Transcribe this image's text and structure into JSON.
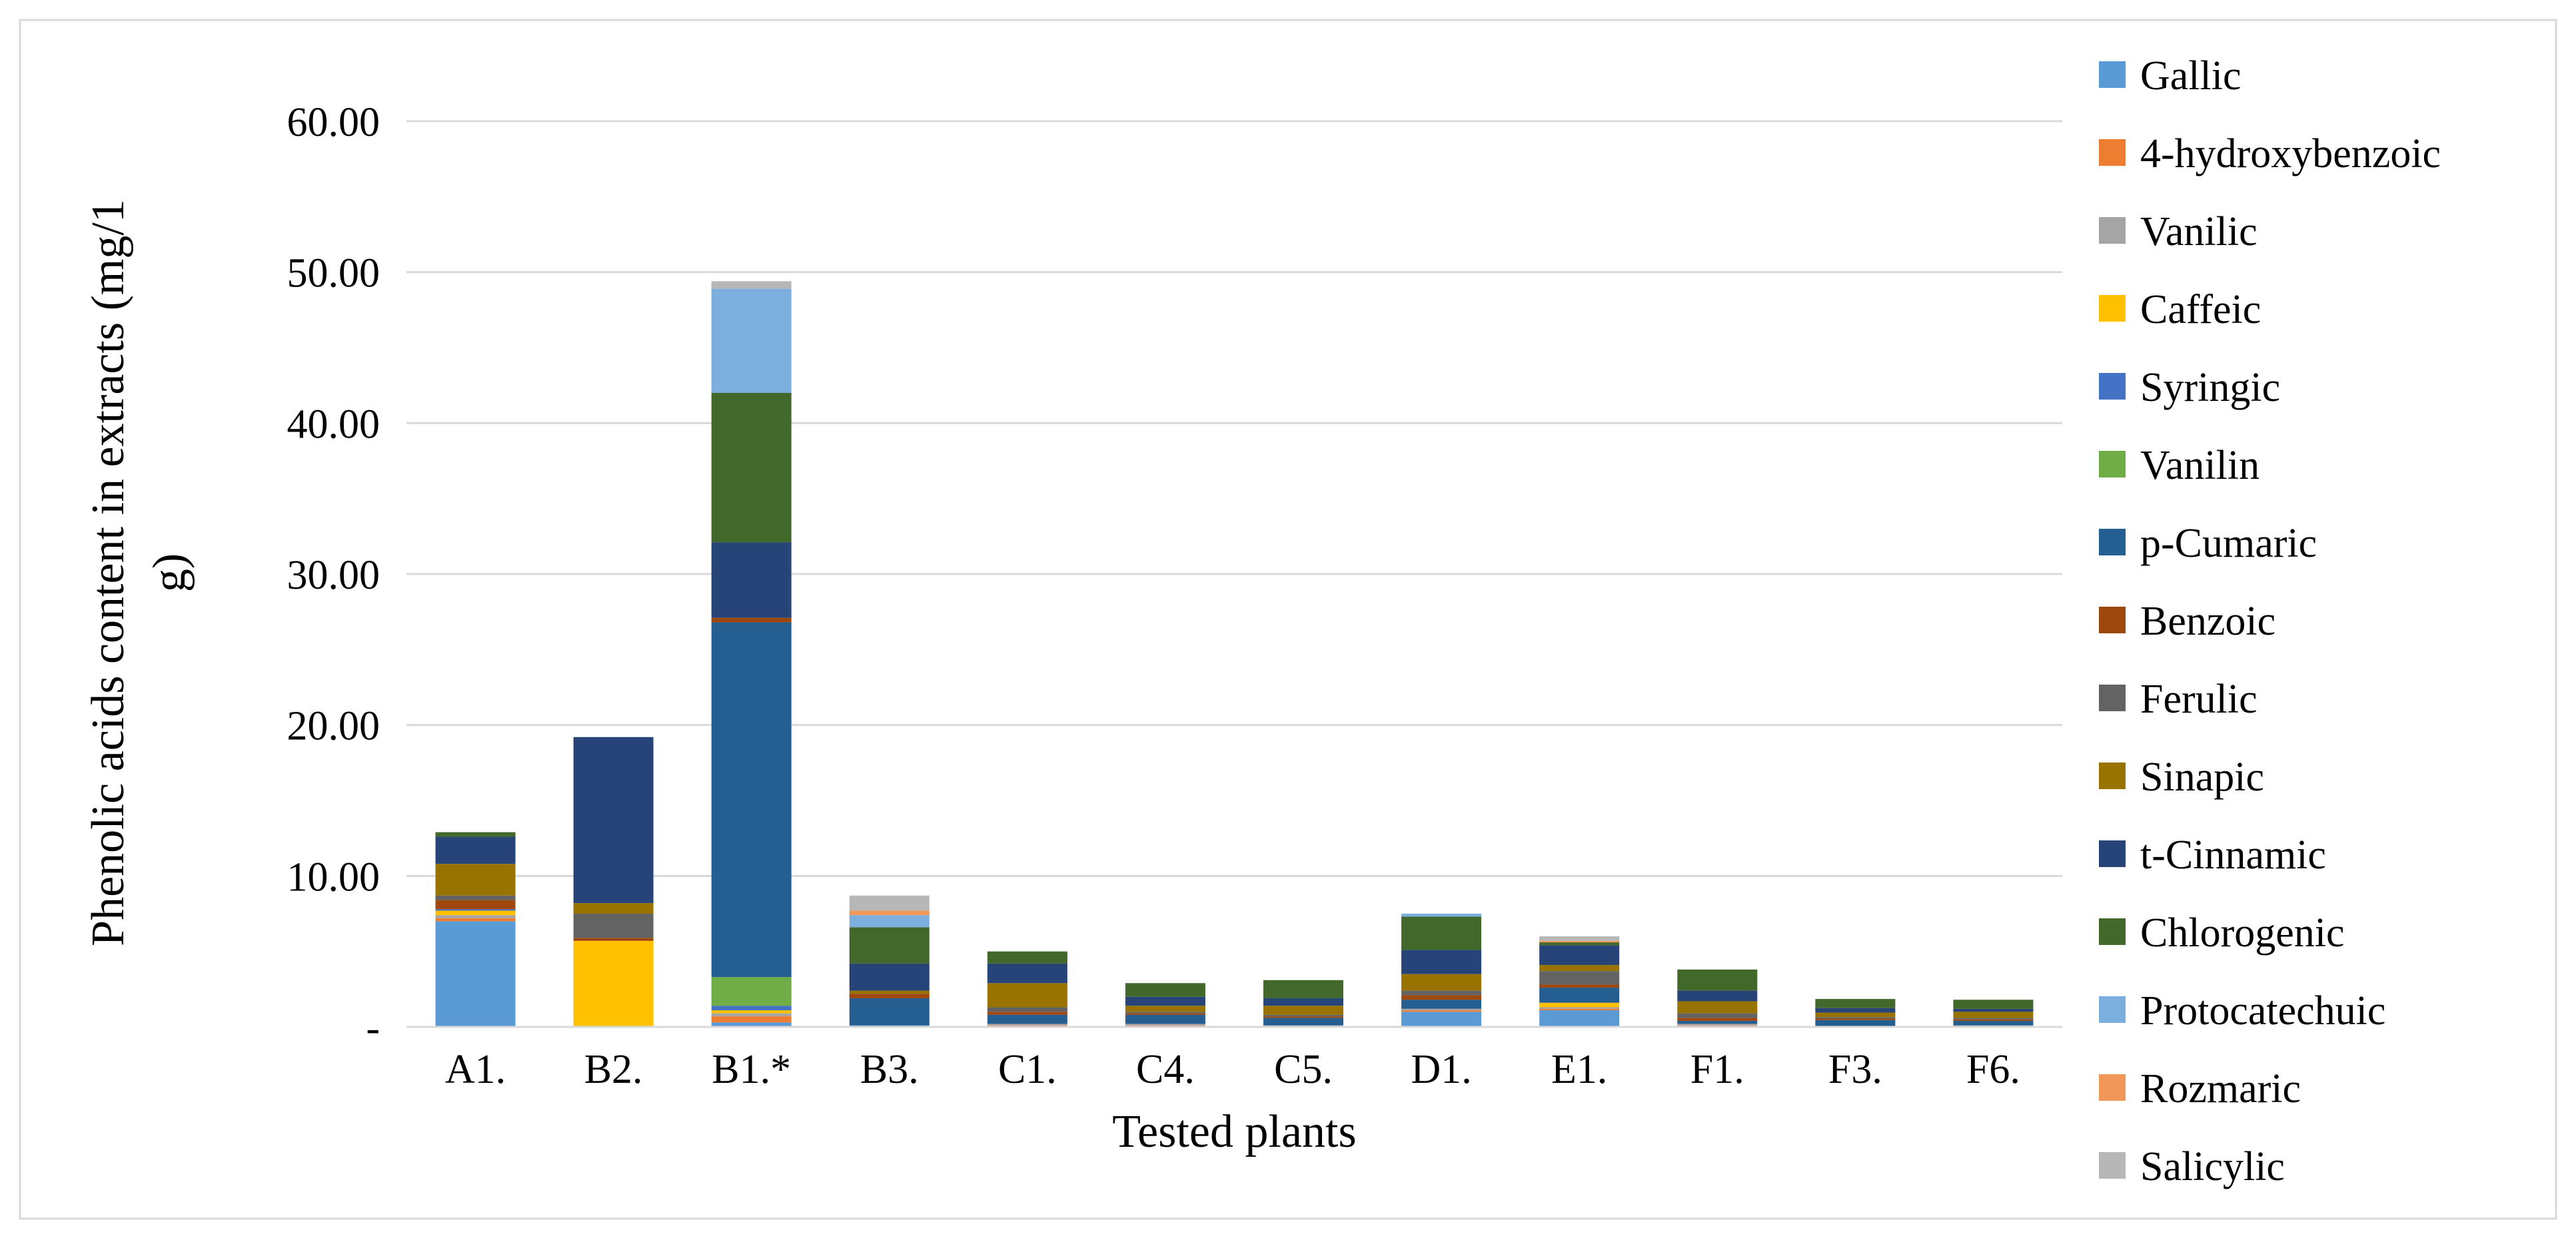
{
  "chart_data": {
    "type": "bar",
    "stacked": true,
    "xlabel": "Tested plants",
    "ylabel": "Phenolic acids content in extracts (mg/1 g)",
    "ylabel_lines": [
      "Phenolic acids content in extracts (mg/1",
      "g)"
    ],
    "ylim": [
      0,
      60
    ],
    "yticks": [
      0,
      10,
      20,
      30,
      40,
      50,
      60
    ],
    "ytick_labels": [
      "-",
      "10.00",
      "20.00",
      "30.00",
      "40.00",
      "50.00",
      "60.00"
    ],
    "grid": true,
    "legend_position": "right",
    "categories": [
      "A1.",
      "B2.",
      "B1.*",
      "B3.",
      "C1.",
      "C4.",
      "C5.",
      "D1.",
      "E1.",
      "F1.",
      "F3.",
      "F6."
    ],
    "series": [
      {
        "name": "Gallic",
        "color": "#5B9BD5",
        "values": [
          7.0,
          0,
          0.3,
          0.1,
          0,
          0,
          0,
          1.0,
          1.1,
          0,
          0,
          0
        ]
      },
      {
        "name": "4-hydroxybenzoic",
        "color": "#ED7D31",
        "values": [
          0.2,
          0,
          0.4,
          0,
          0.1,
          0.1,
          0,
          0.1,
          0.1,
          0.1,
          0,
          0.05
        ]
      },
      {
        "name": "Vanilic",
        "color": "#A5A5A5",
        "values": [
          0.2,
          0,
          0.2,
          0,
          0.1,
          0.1,
          0.1,
          0.1,
          0.1,
          0.1,
          0.05,
          0.05
        ]
      },
      {
        "name": "Caffeic",
        "color": "#FFC000",
        "values": [
          0.3,
          5.7,
          0.2,
          0,
          0,
          0,
          0,
          0,
          0.3,
          0,
          0,
          0
        ]
      },
      {
        "name": "Syringic",
        "color": "#4472C4",
        "values": [
          0.1,
          0,
          0.3,
          0,
          0,
          0,
          0,
          0,
          0,
          0,
          0,
          0
        ]
      },
      {
        "name": "Vanilin",
        "color": "#70AD47",
        "values": [
          0,
          0,
          1.9,
          0,
          0,
          0,
          0,
          0,
          0,
          0,
          0,
          0
        ]
      },
      {
        "name": "p-Cumaric",
        "color": "#255E91",
        "values": [
          0,
          0,
          23.5,
          1.8,
          0.6,
          0.6,
          0.5,
          0.6,
          1.0,
          0.2,
          0.4,
          0.3
        ]
      },
      {
        "name": "Benzoic",
        "color": "#9E480E",
        "values": [
          0.6,
          0.2,
          0.3,
          0.3,
          0.2,
          0.1,
          0.1,
          0.3,
          0.2,
          0.2,
          0.1,
          0.1
        ]
      },
      {
        "name": "Ferulic",
        "color": "#636363",
        "values": [
          0.3,
          1.6,
          0,
          0,
          0.3,
          0.1,
          0.1,
          0.3,
          0.9,
          0.3,
          0.1,
          0.1
        ]
      },
      {
        "name": "Sinapic",
        "color": "#997300",
        "values": [
          2.1,
          0.7,
          0,
          0.2,
          1.6,
          0.4,
          0.6,
          1.1,
          0.4,
          0.8,
          0.3,
          0.4
        ]
      },
      {
        "name": "t-Cinnamic",
        "color": "#264478",
        "values": [
          1.8,
          11.0,
          5.0,
          1.8,
          1.3,
          0.6,
          0.5,
          1.6,
          1.3,
          0.7,
          0.3,
          0.2
        ]
      },
      {
        "name": "Chlorogenic",
        "color": "#43682B",
        "values": [
          0.3,
          0,
          9.9,
          2.4,
          0.8,
          0.9,
          1.2,
          2.2,
          0.2,
          1.4,
          0.6,
          0.6
        ]
      },
      {
        "name": "Protocatechuic",
        "color": "#7CAFDD",
        "values": [
          0,
          0,
          6.9,
          0.8,
          0,
          0,
          0,
          0.2,
          0,
          0,
          0,
          0
        ]
      },
      {
        "name": "Rozmaric",
        "color": "#F1975A",
        "values": [
          0,
          0,
          0,
          0.3,
          0,
          0,
          0,
          0,
          0.1,
          0,
          0,
          0
        ]
      },
      {
        "name": "Salicylic",
        "color": "#B7B7B7",
        "values": [
          0,
          0,
          0.5,
          1.0,
          0,
          0,
          0,
          0,
          0.3,
          0,
          0,
          0
        ]
      }
    ]
  }
}
